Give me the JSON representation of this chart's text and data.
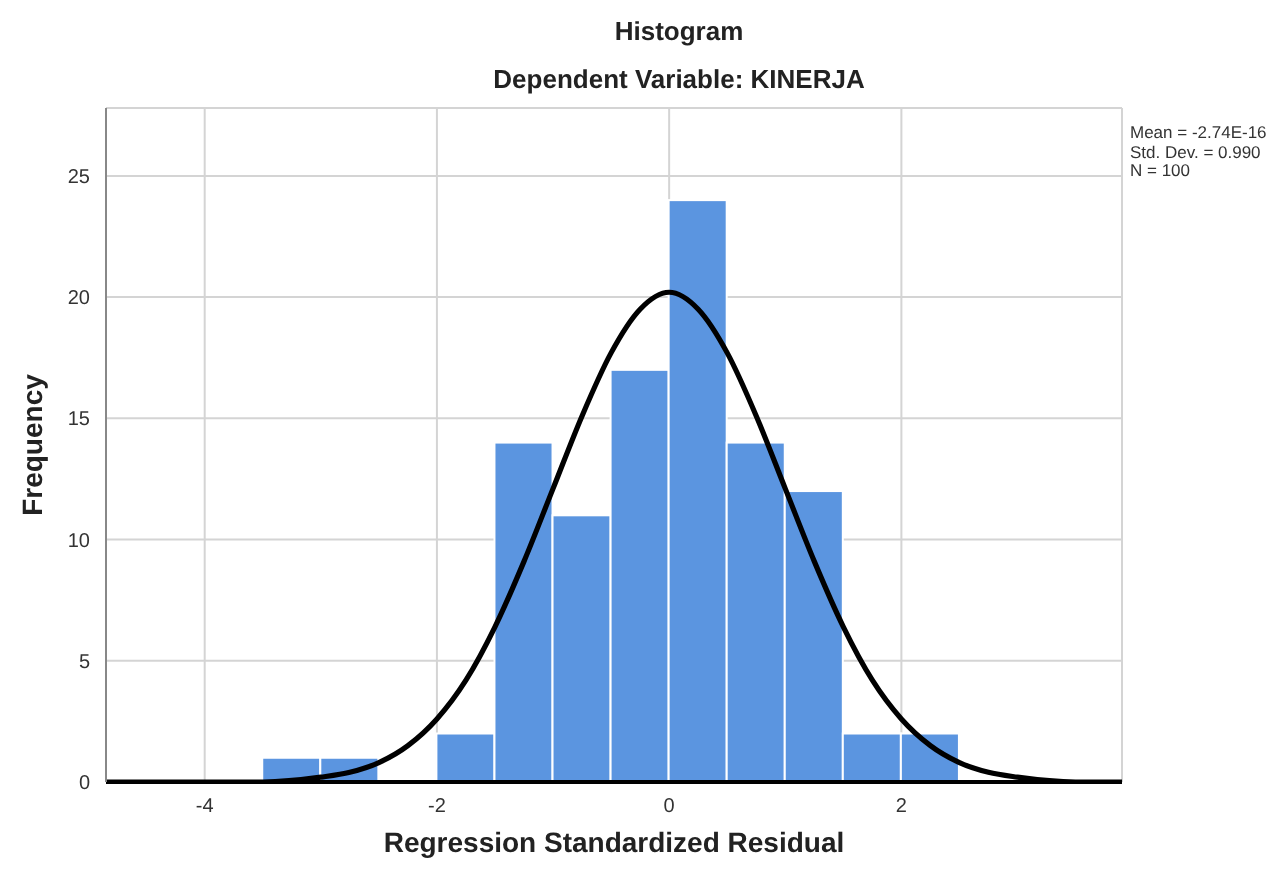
{
  "chart_data": {
    "type": "histogram",
    "title": "Histogram",
    "subtitle": "Dependent Variable: KINERJA",
    "xlabel": "Regression Standardized Residual",
    "ylabel": "Frequency",
    "annotations": [
      "Mean = -2.74E-16",
      "Std. Dev. = 0.990",
      "N = 100"
    ],
    "bins": [
      -3.5,
      -3,
      -2.5,
      -2,
      -1.5,
      -1,
      -0.5,
      0,
      0.5,
      1,
      1.5,
      2,
      2.5
    ],
    "values": [
      1,
      1,
      0,
      2,
      14,
      11,
      17,
      24,
      14,
      12,
      2,
      2
    ],
    "color": "#5b95e0",
    "series": [
      {
        "type": "line",
        "color": "#000000",
        "x": [
          -4.85,
          -4,
          -3.5,
          -3,
          -2.75,
          -2.5,
          -2.25,
          -2,
          -1.75,
          -1.5,
          -1.25,
          -1,
          -0.75,
          -0.5,
          -0.25,
          0,
          0.25,
          0.5,
          0.75,
          1,
          1.25,
          1.5,
          1.75,
          2,
          2.25,
          2.5,
          2.75,
          3,
          3.5,
          3.9
        ],
        "values": [
          0,
          0,
          0,
          0.2,
          0.4,
          0.8,
          1.5,
          2.6,
          4.2,
          6.4,
          9.1,
          12.1,
          15.1,
          17.7,
          19.5,
          20.2,
          19.5,
          17.7,
          15.1,
          12.1,
          9.1,
          6.4,
          4.2,
          2.6,
          1.5,
          0.8,
          0.4,
          0.2,
          0,
          0
        ]
      }
    ],
    "xlim": [
      -4.85,
      3.9
    ],
    "xticks": [
      -4,
      -2,
      0,
      2
    ],
    "ylim": [
      0,
      27.8
    ],
    "yticks": [
      0,
      5,
      10,
      15,
      20,
      25
    ],
    "grid": true
  }
}
